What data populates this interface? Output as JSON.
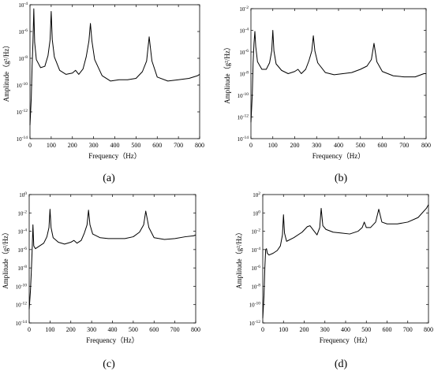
{
  "chart_data": [
    {
      "type": "line",
      "panel_label": "(a)",
      "xlabel": "Frequency（Hz）",
      "ylabel": "Amplitude（g²/Hz）",
      "yscale": "log",
      "xlim": [
        0,
        800
      ],
      "ylim_exp": [
        -14,
        -4
      ],
      "x_ticks": [
        0,
        100,
        200,
        300,
        400,
        500,
        600,
        700,
        800
      ],
      "y_tick_labels": [
        "10-14",
        "10-12",
        "10-10",
        "10-8",
        "10-6",
        "10-4"
      ],
      "series": [
        {
          "x": [
            0,
            6,
            10,
            14,
            18,
            22,
            30,
            50,
            70,
            85,
            95,
            100,
            105,
            115,
            140,
            170,
            200,
            215,
            230,
            250,
            265,
            278,
            285,
            292,
            305,
            340,
            380,
            420,
            460,
            500,
            530,
            550,
            562,
            575,
            600,
            650,
            700,
            750,
            790,
            800
          ],
          "y_exp": [
            -13,
            -11,
            -8.6,
            -6.8,
            -4.3,
            -6.8,
            -8.1,
            -8.7,
            -8.6,
            -7.8,
            -6.6,
            -4.5,
            -6.6,
            -7.9,
            -8.9,
            -9.2,
            -9.1,
            -8.9,
            -9.2,
            -8.8,
            -7.9,
            -6.7,
            -5.4,
            -6.7,
            -8.1,
            -9.3,
            -9.7,
            -9.6,
            -9.6,
            -9.5,
            -9.0,
            -8.2,
            -6.4,
            -8.2,
            -9.4,
            -9.7,
            -9.6,
            -9.5,
            -9.3,
            -9.2
          ]
        }
      ]
    },
    {
      "type": "line",
      "panel_label": "(b)",
      "xlabel": "Frequency（Hz）",
      "ylabel": "Amplitude（g²/Hz）",
      "yscale": "log",
      "xlim": [
        0,
        800
      ],
      "ylim_exp": [
        -14,
        -2
      ],
      "x_ticks": [
        0,
        100,
        200,
        300,
        400,
        500,
        600,
        700,
        800
      ],
      "y_tick_labels": [
        "10-14",
        "10-12",
        "10-10",
        "10-8",
        "10-6",
        "10-4",
        "10-2"
      ],
      "series": [
        {
          "x": [
            0,
            6,
            10,
            14,
            18,
            22,
            30,
            50,
            70,
            85,
            95,
            100,
            105,
            115,
            140,
            170,
            200,
            215,
            230,
            250,
            265,
            278,
            285,
            292,
            305,
            340,
            380,
            420,
            460,
            500,
            530,
            550,
            562,
            575,
            600,
            650,
            700,
            750,
            790,
            800
          ],
          "y_exp": [
            -12.5,
            -10,
            -7,
            -5.2,
            -4.1,
            -5.5,
            -6.9,
            -7.6,
            -7.6,
            -7.0,
            -5.9,
            -4.0,
            -5.9,
            -7.1,
            -7.7,
            -8.0,
            -7.8,
            -7.6,
            -8.0,
            -7.6,
            -6.8,
            -5.9,
            -4.5,
            -5.9,
            -7.0,
            -7.9,
            -8.1,
            -8.0,
            -7.9,
            -7.6,
            -7.3,
            -6.7,
            -5.2,
            -6.9,
            -7.8,
            -8.2,
            -8.3,
            -8.3,
            -8.0,
            -8.0
          ]
        }
      ]
    },
    {
      "type": "line",
      "panel_label": "(c)",
      "xlabel": "Frequency（Hz）",
      "ylabel": "Amplitude（g²/Hz）",
      "yscale": "log",
      "xlim": [
        0,
        800
      ],
      "ylim_exp": [
        -14,
        0
      ],
      "x_ticks": [
        0,
        100,
        200,
        300,
        400,
        500,
        600,
        700,
        800
      ],
      "y_tick_labels": [
        "10-14",
        "10-12",
        "10-10",
        "10-8",
        "10-6",
        "10-4",
        "10-2",
        "100"
      ],
      "series": [
        {
          "x": [
            0,
            6,
            10,
            14,
            18,
            22,
            30,
            50,
            70,
            85,
            95,
            100,
            105,
            115,
            140,
            170,
            200,
            215,
            230,
            250,
            265,
            278,
            285,
            292,
            305,
            340,
            380,
            420,
            460,
            500,
            530,
            550,
            560,
            575,
            600,
            650,
            700,
            750,
            790,
            800
          ],
          "y_exp": [
            -12.5,
            -10.5,
            -8.5,
            -6.2,
            -3.3,
            -5.6,
            -5.9,
            -5.6,
            -5.3,
            -4.6,
            -3.6,
            -1.6,
            -3.6,
            -4.7,
            -5.2,
            -5.4,
            -5.2,
            -5.0,
            -5.3,
            -5.0,
            -4.2,
            -3.3,
            -1.7,
            -3.3,
            -4.3,
            -4.7,
            -4.8,
            -4.8,
            -4.8,
            -4.6,
            -4.1,
            -3.3,
            -1.8,
            -3.6,
            -4.7,
            -4.9,
            -4.8,
            -4.6,
            -4.5,
            -4.4
          ]
        }
      ]
    },
    {
      "type": "line",
      "panel_label": "(d)",
      "xlabel": "Frequency（Hz）",
      "ylabel": "Amplitude（g²/Hz）",
      "yscale": "log",
      "xlim": [
        0,
        800
      ],
      "ylim_exp": [
        -12,
        2
      ],
      "x_ticks": [
        0,
        100,
        200,
        300,
        400,
        500,
        600,
        700,
        800
      ],
      "y_tick_labels": [
        "10-12",
        "10-10",
        "10-8",
        "10-6",
        "10-4",
        "10-2",
        "100",
        "102"
      ],
      "series": [
        {
          "x": [
            0,
            6,
            10,
            14,
            18,
            22,
            30,
            50,
            70,
            85,
            95,
            100,
            105,
            115,
            150,
            190,
            215,
            228,
            245,
            262,
            275,
            282,
            290,
            305,
            340,
            380,
            420,
            460,
            480,
            490,
            500,
            520,
            545,
            560,
            575,
            600,
            650,
            700,
            750,
            790,
            800
          ],
          "y_exp": [
            -11.5,
            -9,
            -6,
            -4,
            -3.9,
            -4.4,
            -4.6,
            -4.4,
            -4.1,
            -3.6,
            -2.4,
            -0.2,
            -2.2,
            -3.1,
            -2.7,
            -2.1,
            -1.5,
            -1.4,
            -1.9,
            -2.4,
            -1.6,
            0.5,
            -1.4,
            -1.8,
            -2.1,
            -2.2,
            -2.3,
            -2.0,
            -1.6,
            -1.0,
            -1.6,
            -1.6,
            -1.0,
            0.4,
            -1.0,
            -1.2,
            -1.2,
            -1.0,
            -0.5,
            0.5,
            0.9
          ]
        }
      ]
    }
  ]
}
